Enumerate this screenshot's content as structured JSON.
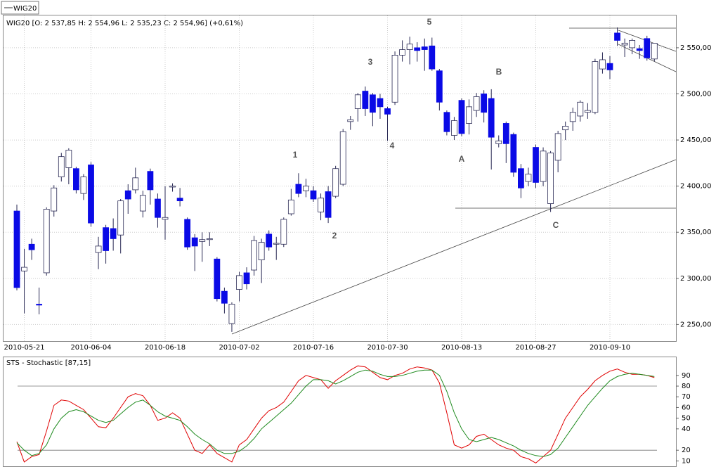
{
  "tab": "WIG20",
  "chart_data": [
    {
      "type": "candlestick",
      "title": "WIG20 [O: 2 537,85  H: 2 554,96  L: 2 535,23  C: 2 554,96] (+0,61%)",
      "categories": [
        null,
        "2010-05-21",
        null,
        null,
        null,
        null,
        null,
        null,
        null,
        null,
        "2010-06-04",
        null,
        null,
        null,
        null,
        null,
        null,
        null,
        null,
        null,
        "2010-06-18",
        null,
        null,
        null,
        null,
        null,
        null,
        null,
        null,
        null,
        "2010-07-02",
        null,
        null,
        null,
        null,
        null,
        null,
        null,
        null,
        null,
        "2010-07-16",
        null,
        null,
        null,
        null,
        null,
        null,
        null,
        null,
        null,
        "2010-07-30",
        null,
        null,
        null,
        null,
        null,
        null,
        null,
        null,
        null,
        "2010-08-13",
        null,
        null,
        null,
        null,
        null,
        null,
        null,
        null,
        null,
        "2010-08-27",
        null,
        null,
        null,
        null,
        null,
        null,
        null,
        null,
        null,
        "2010-09-10",
        null,
        null,
        null,
        null,
        null,
        null
      ],
      "open": [
        2373,
        2308,
        2337,
        2272,
        2306,
        2373,
        2410,
        2420,
        2419,
        2392,
        2423,
        2328,
        2355,
        2354,
        2347,
        2395,
        2396,
        2373,
        2416,
        2386,
        2364,
        2399,
        2387,
        2364,
        2344,
        2340,
        2342,
        2321,
        2286,
        2251,
        2288,
        2306,
        2309,
        2320,
        2348,
        2337,
        2337,
        2370,
        2402,
        2395,
        2395,
        2372,
        2394,
        2389,
        2402,
        2470,
        2484,
        2503,
        2499,
        2495,
        2484,
        2491,
        2542,
        2548,
        2550,
        2551,
        2552,
        2525,
        2480,
        2455,
        2493,
        2468,
        2482,
        2500,
        2495,
        2446,
        2468,
        2456,
        2419,
        2405,
        2442,
        2405,
        2381,
        2428,
        2461,
        2470,
        2476,
        2480,
        2480,
        2527,
        2533,
        2566,
        2553,
        2550,
        2549,
        2560,
        2537.85
      ],
      "high": [
        2380,
        2332,
        2343,
        2290,
        2377,
        2401,
        2436,
        2441,
        2421,
        2413,
        2426,
        2345,
        2358,
        2365,
        2386,
        2402,
        2420,
        2395,
        2419,
        2392,
        2400,
        2403,
        2398,
        2366,
        2348,
        2350,
        2350,
        2323,
        2290,
        2274,
        2307,
        2312,
        2346,
        2343,
        2352,
        2345,
        2366,
        2397,
        2414,
        2408,
        2400,
        2392,
        2400,
        2422,
        2462,
        2476,
        2501,
        2508,
        2501,
        2500,
        2486,
        2546,
        2558,
        2562,
        2556,
        2560,
        2561,
        2527,
        2482,
        2475,
        2495,
        2494,
        2501,
        2504,
        2505,
        2455,
        2470,
        2458,
        2424,
        2420,
        2445,
        2442,
        2438,
        2460,
        2470,
        2485,
        2493,
        2490,
        2538,
        2545,
        2541,
        2572,
        2560,
        2560,
        2553,
        2563,
        2554.96
      ],
      "low": [
        2287,
        2262,
        2320,
        2261,
        2303,
        2367,
        2405,
        2402,
        2392,
        2385,
        2356,
        2310,
        2316,
        2330,
        2327,
        2370,
        2392,
        2366,
        2380,
        2355,
        2342,
        2394,
        2378,
        2331,
        2308,
        2318,
        2335,
        2275,
        2262,
        2242,
        2275,
        2288,
        2303,
        2295,
        2330,
        2320,
        2334,
        2368,
        2388,
        2388,
        2383,
        2363,
        2360,
        2387,
        2400,
        2461,
        2470,
        2476,
        2465,
        2473,
        2449,
        2488,
        2535,
        2532,
        2535,
        2525,
        2525,
        2482,
        2455,
        2450,
        2454,
        2456,
        2475,
        2469,
        2418,
        2442,
        2425,
        2410,
        2387,
        2400,
        2398,
        2400,
        2372,
        2415,
        2450,
        2460,
        2470,
        2473,
        2478,
        2522,
        2516,
        2552,
        2540,
        2543,
        2538,
        2536,
        2535.23
      ],
      "close": [
        2290,
        2312,
        2331,
        2271,
        2375,
        2398,
        2432,
        2439,
        2396,
        2410,
        2360,
        2335,
        2330,
        2343,
        2384,
        2386,
        2409,
        2390,
        2396,
        2366,
        2366,
        2400,
        2384,
        2334,
        2335,
        2342,
        2343,
        2278,
        2273,
        2272,
        2303,
        2294,
        2341,
        2339,
        2334,
        2338,
        2364,
        2385,
        2392,
        2400,
        2386,
        2387,
        2366,
        2419,
        2459,
        2472,
        2499,
        2484,
        2480,
        2486,
        2478,
        2542,
        2548,
        2554,
        2547,
        2548,
        2527,
        2491,
        2459,
        2471,
        2457,
        2486,
        2497,
        2480,
        2453,
        2449,
        2446,
        2415,
        2398,
        2413,
        2404,
        2438,
        2436,
        2457,
        2465,
        2480,
        2491,
        2482,
        2535,
        2537,
        2526,
        2558,
        2555,
        2558,
        2547,
        2539,
        2554.96
      ],
      "up_color": "#ffffff",
      "down_color": "#0a0ae6",
      "wick_color": "#2a2a55",
      "ylim": [
        2232,
        2585
      ],
      "yticks": [
        {
          "value": 2250,
          "label": "2 250,00"
        },
        {
          "value": 2300,
          "label": "2 300,00"
        },
        {
          "value": 2350,
          "label": "2 350,00"
        },
        {
          "value": 2400,
          "label": "2 400,00"
        },
        {
          "value": 2450,
          "label": "2 450,00"
        },
        {
          "value": 2500,
          "label": "2 500,00"
        },
        {
          "value": 2550,
          "label": "2 550,00"
        }
      ],
      "grid": true,
      "annotations": [
        "1",
        "2",
        "3",
        "4",
        "5",
        "A",
        "B",
        "C"
      ]
    },
    {
      "type": "line",
      "title": "STS - Stochastic [87,15]",
      "series": [
        {
          "color": "#e00000",
          "values": [
            28,
            9,
            14,
            16,
            38,
            62,
            67,
            66,
            62,
            58,
            50,
            42,
            41,
            50,
            60,
            70,
            73,
            71,
            62,
            48,
            50,
            55,
            50,
            35,
            20,
            17,
            25,
            17,
            13,
            9,
            25,
            30,
            40,
            50,
            57,
            60,
            65,
            75,
            85,
            90,
            88,
            86,
            78,
            85,
            90,
            95,
            99,
            98,
            93,
            88,
            86,
            90,
            92,
            96,
            98,
            97,
            95,
            83,
            55,
            25,
            22,
            25,
            33,
            35,
            30,
            25,
            22,
            20,
            14,
            12,
            8,
            14,
            20,
            35,
            50,
            60,
            70,
            77,
            85,
            90,
            94,
            96,
            93,
            91,
            91,
            90,
            88
          ]
        },
        {
          "color": "#1e8a1e",
          "values": [
            27,
            20,
            15,
            17,
            25,
            40,
            50,
            56,
            58,
            56,
            52,
            48,
            46,
            48,
            54,
            60,
            65,
            67,
            62,
            56,
            52,
            50,
            48,
            42,
            35,
            30,
            26,
            20,
            17,
            17,
            19,
            24,
            31,
            40,
            46,
            52,
            58,
            64,
            72,
            80,
            86,
            86,
            85,
            82,
            85,
            89,
            93,
            95,
            94,
            91,
            89,
            89,
            90,
            92,
            94,
            95,
            95,
            90,
            75,
            55,
            40,
            30,
            28,
            30,
            32,
            30,
            27,
            24,
            20,
            17,
            15,
            14,
            16,
            22,
            32,
            42,
            52,
            62,
            70,
            78,
            85,
            89,
            91,
            92,
            91,
            90,
            89
          ]
        }
      ],
      "ylim": [
        5,
        107
      ],
      "yticks": [
        10,
        20,
        40,
        50,
        60,
        70,
        80,
        90
      ],
      "hlines": [
        80,
        20
      ]
    }
  ]
}
